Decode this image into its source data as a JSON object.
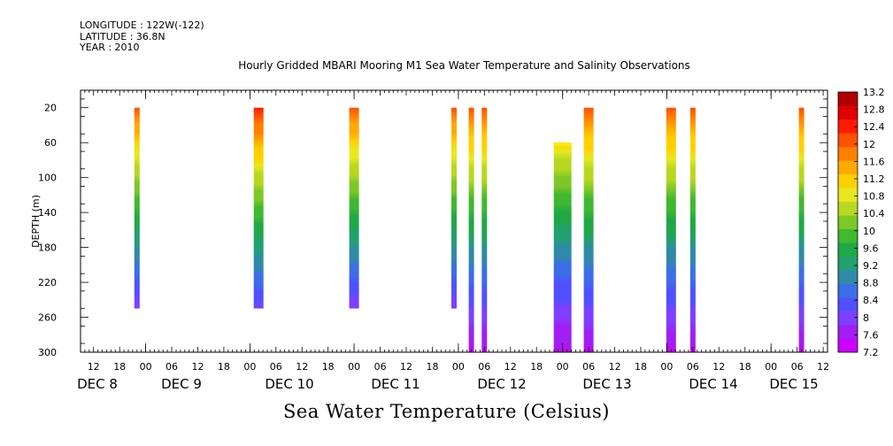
{
  "meta": {
    "longitude": "LONGITUDE : 122W(-122)",
    "latitude": "LATITUDE : 36.8N",
    "year": "YEAR : 2010"
  },
  "chart_data": {
    "type": "heatmap",
    "title": "Hourly Gridded MBARI Mooring M1 Sea Water Temperature and Salinity Observations",
    "xlabel": "Sea Water Temperature (Celsius)",
    "ylabel": "DEPTH (m)",
    "ylim": [
      300,
      0
    ],
    "y_ticks": [
      20,
      60,
      100,
      140,
      180,
      220,
      260,
      300
    ],
    "x_range": [
      "DEC 8 09:00",
      "DEC 15 13:00"
    ],
    "x_hour_ticks": [
      "12",
      "18",
      "00",
      "06",
      "12",
      "18",
      "00",
      "06",
      "12",
      "18",
      "00",
      "06",
      "12",
      "18",
      "00",
      "06",
      "12",
      "18",
      "00",
      "06",
      "12",
      "18",
      "00",
      "06",
      "12",
      "18",
      "00",
      "06",
      "12"
    ],
    "x_day_labels": [
      "DEC 8",
      "DEC 9",
      "DEC 10",
      "DEC 11",
      "DEC 12",
      "DEC 13",
      "DEC 14",
      "DEC 15"
    ],
    "colorbar": {
      "labels": [
        "13.2",
        "12.8",
        "12.4",
        "12",
        "11.6",
        "11.2",
        "10.8",
        "10.4",
        "10",
        "9.6",
        "9.2",
        "8.8",
        "8.4",
        "8",
        "7.6",
        "7.2"
      ],
      "min": 7.2,
      "max": 13.2,
      "colors": [
        "#cc00ff",
        "#a020f0",
        "#7f3fff",
        "#5050ff",
        "#3c6ee6",
        "#2f8aa8",
        "#22a070",
        "#1fa845",
        "#40b830",
        "#7dc826",
        "#b8d820",
        "#e8e820",
        "#ffd000",
        "#ffaa00",
        "#ff8000",
        "#ff5000",
        "#ff1a00",
        "#e00000",
        "#b00000"
      ]
    },
    "profiles": [
      {
        "time": "DEC 8 22:00",
        "depth_top": 20,
        "depth_bottom": 250,
        "temp_top": 12.0,
        "temp_bottom": 8.0
      },
      {
        "time": "DEC 10 02:00",
        "depth_top": 20,
        "depth_bottom": 250,
        "temp_top": 12.4,
        "temp_bottom": 8.0
      },
      {
        "time": "DEC 11 00:00",
        "depth_top": 20,
        "depth_bottom": 250,
        "temp_top": 12.0,
        "temp_bottom": 8.0
      },
      {
        "time": "DEC 11 23:00",
        "depth_top": 20,
        "depth_bottom": 250,
        "temp_top": 12.0,
        "temp_bottom": 8.0
      },
      {
        "time": "DEC 12 03:00",
        "depth_top": 20,
        "depth_bottom": 300,
        "temp_top": 12.0,
        "temp_bottom": 7.4
      },
      {
        "time": "DEC 12 06:00",
        "depth_top": 20,
        "depth_bottom": 300,
        "temp_top": 12.0,
        "temp_bottom": 7.4
      },
      {
        "time": "DEC 13 00:00",
        "depth_top": 60,
        "depth_bottom": 300,
        "temp_top": 11.0,
        "temp_bottom": 7.4
      },
      {
        "time": "DEC 13 06:00",
        "depth_top": 20,
        "depth_bottom": 300,
        "temp_top": 12.0,
        "temp_bottom": 7.4
      },
      {
        "time": "DEC 14 01:00",
        "depth_top": 20,
        "depth_bottom": 300,
        "temp_top": 12.0,
        "temp_bottom": 7.4
      },
      {
        "time": "DEC 14 06:00",
        "depth_top": 20,
        "depth_bottom": 300,
        "temp_top": 12.0,
        "temp_bottom": 7.4
      },
      {
        "time": "DEC 15 07:00",
        "depth_top": 20,
        "depth_bottom": 300,
        "temp_top": 12.0,
        "temp_bottom": 7.4
      }
    ]
  }
}
